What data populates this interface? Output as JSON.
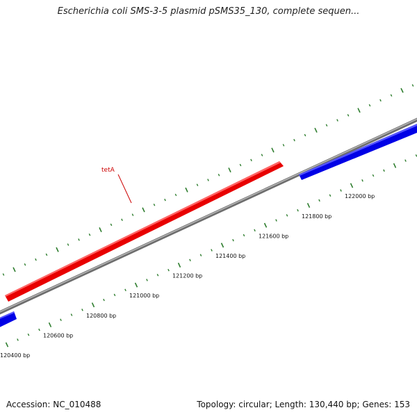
{
  "title": "Escherichia coli SMS-3-5 plasmid pSMS35_130, complete sequen...",
  "footer": {
    "accession": "Accession: NC_010488",
    "summary": "Topology: circular; Length: 130,440 bp; Genes: 153"
  },
  "colors": {
    "backbone": "#8a8a8a",
    "forward_gene": "#ee0000",
    "reverse_gene": "#0000ee",
    "ticks": "#2e7d2e",
    "gene_label": "#cc0000"
  },
  "genes": [
    {
      "name": "tetA",
      "strand": "forward",
      "labeled": true
    },
    {
      "name": "",
      "strand": "reverse",
      "labeled": false
    },
    {
      "name": "",
      "strand": "reverse",
      "labeled": false
    }
  ],
  "scale_labels": [
    "120400 bp",
    "120600 bp",
    "120800 bp",
    "121000 bp",
    "121200 bp",
    "121400 bp",
    "121600 bp",
    "121800 bp",
    "122000 bp"
  ]
}
